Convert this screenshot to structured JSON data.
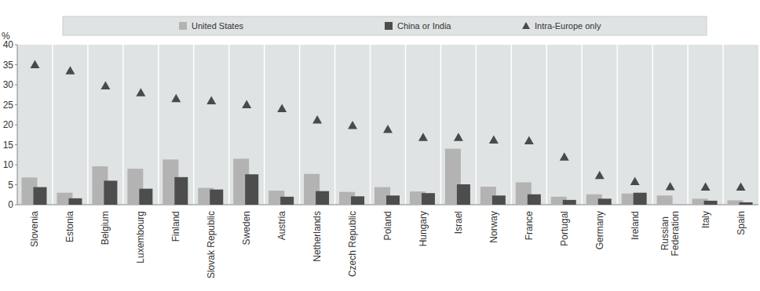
{
  "chart_data": {
    "type": "bar",
    "y_label": "%",
    "categories": [
      "Slovenia",
      "Estonia",
      "Belgium",
      "Luxembourg",
      "Finland",
      "Slovak Republic",
      "Sweden",
      "Austria",
      "Netherlands",
      "Czech Republic",
      "Poland",
      "Hungary",
      "Israel",
      "Norway",
      "France",
      "Portugal",
      "Germany",
      "Ireland",
      "Russian Federation",
      "Italy",
      "Spain"
    ],
    "series": [
      {
        "name": "United States",
        "type": "bar",
        "color": "#b3b3b3",
        "values": [
          6.8,
          3,
          9.6,
          9,
          11.3,
          4.2,
          11.5,
          3.5,
          7.7,
          3.2,
          4.4,
          3.3,
          14,
          4.5,
          5.6,
          2,
          2.6,
          2.8,
          2.3,
          1.5,
          1.1
        ]
      },
      {
        "name": "China or India",
        "type": "bar",
        "color": "#4d4d4d",
        "values": [
          4.4,
          1.6,
          6,
          4,
          6.9,
          3.8,
          7.6,
          2,
          3.4,
          2.1,
          2.3,
          2.9,
          5.1,
          2.3,
          2.6,
          1.2,
          1.5,
          3,
          null,
          1,
          0.6
        ]
      },
      {
        "name": "Intra-Europe only",
        "type": "scatter",
        "marker": "triangle",
        "color": "#4a4a4a",
        "values": [
          35,
          33.5,
          29.7,
          28,
          26.5,
          26,
          25,
          24,
          21.2,
          19.8,
          18.8,
          16.8,
          16.8,
          16.2,
          16,
          11.9,
          7.3,
          5.8,
          4.5,
          4.4,
          4.4
        ]
      }
    ],
    "ylim": [
      0,
      40
    ],
    "yticks": [
      0,
      5,
      10,
      15,
      20,
      25,
      30,
      35,
      40
    ],
    "grid": false,
    "legend": "top"
  }
}
